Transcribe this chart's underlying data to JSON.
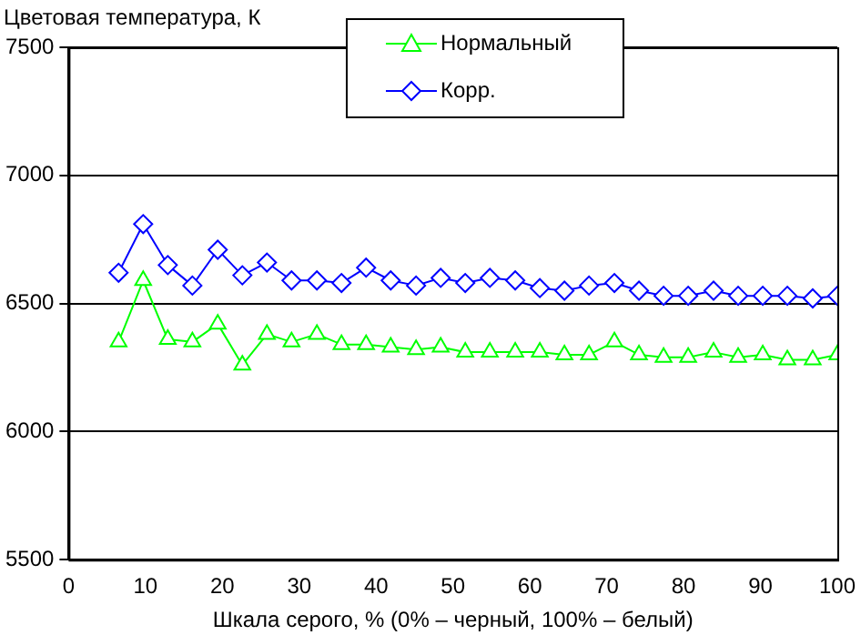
{
  "chart_data": {
    "type": "line",
    "ylabel": "Цветовая температура, К",
    "xlabel": "Шкала серого, % (0% – черный, 100% – белый)",
    "x": [
      6.5,
      9.7,
      12.9,
      16.1,
      19.4,
      22.6,
      25.8,
      29.0,
      32.3,
      35.5,
      38.7,
      41.9,
      45.2,
      48.4,
      51.6,
      54.8,
      58.1,
      61.3,
      64.5,
      67.7,
      71.0,
      74.2,
      77.4,
      80.6,
      83.9,
      87.1,
      90.3,
      93.5,
      96.8,
      100
    ],
    "series": [
      {
        "name": "Нормальный",
        "color": "#00ff00",
        "marker": "triangle",
        "values": [
          6350,
          6590,
          6360,
          6350,
          6420,
          6260,
          6380,
          6350,
          6380,
          6340,
          6340,
          6330,
          6320,
          6330,
          6310,
          6310,
          6310,
          6310,
          6300,
          6300,
          6350,
          6300,
          6290,
          6290,
          6310,
          6290,
          6300,
          6280,
          6280,
          6300
        ]
      },
      {
        "name": "Корр.",
        "color": "#0000ff",
        "marker": "diamond",
        "values": [
          6620,
          6810,
          6650,
          6570,
          6710,
          6610,
          6660,
          6590,
          6590,
          6580,
          6640,
          6590,
          6570,
          6600,
          6580,
          6600,
          6590,
          6560,
          6550,
          6570,
          6580,
          6550,
          6530,
          6530,
          6550,
          6530,
          6530,
          6530,
          6520,
          6530
        ]
      }
    ],
    "xlim": [
      0,
      100
    ],
    "xticks": [
      0,
      10,
      20,
      30,
      40,
      50,
      60,
      70,
      80,
      90,
      100
    ],
    "ylim": [
      5500,
      7500
    ],
    "yticks": [
      5500,
      6000,
      6500,
      7000,
      7500
    ],
    "grid": "y",
    "legend": "top right",
    "line_style": "solid"
  }
}
